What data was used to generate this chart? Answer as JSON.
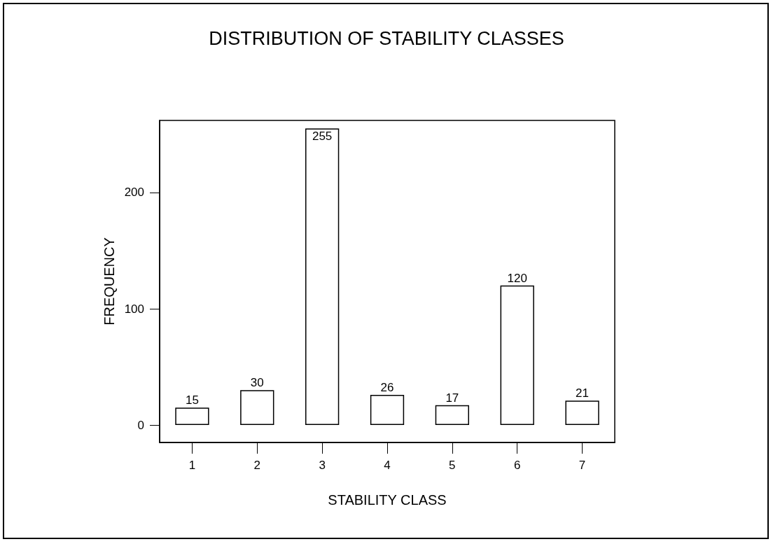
{
  "chart_data": {
    "type": "bar",
    "title": "DISTRIBUTION OF STABILITY CLASSES",
    "xlabel": "STABILITY CLASS",
    "ylabel": "FREQUENCY",
    "categories": [
      "1",
      "2",
      "3",
      "4",
      "5",
      "6",
      "7"
    ],
    "values": [
      15,
      30,
      255,
      26,
      17,
      120,
      21
    ],
    "color": "#ffffff",
    "ylim": [
      -15,
      262
    ],
    "yticks": [
      0,
      100,
      200
    ],
    "grid": false,
    "data_labels": true
  }
}
